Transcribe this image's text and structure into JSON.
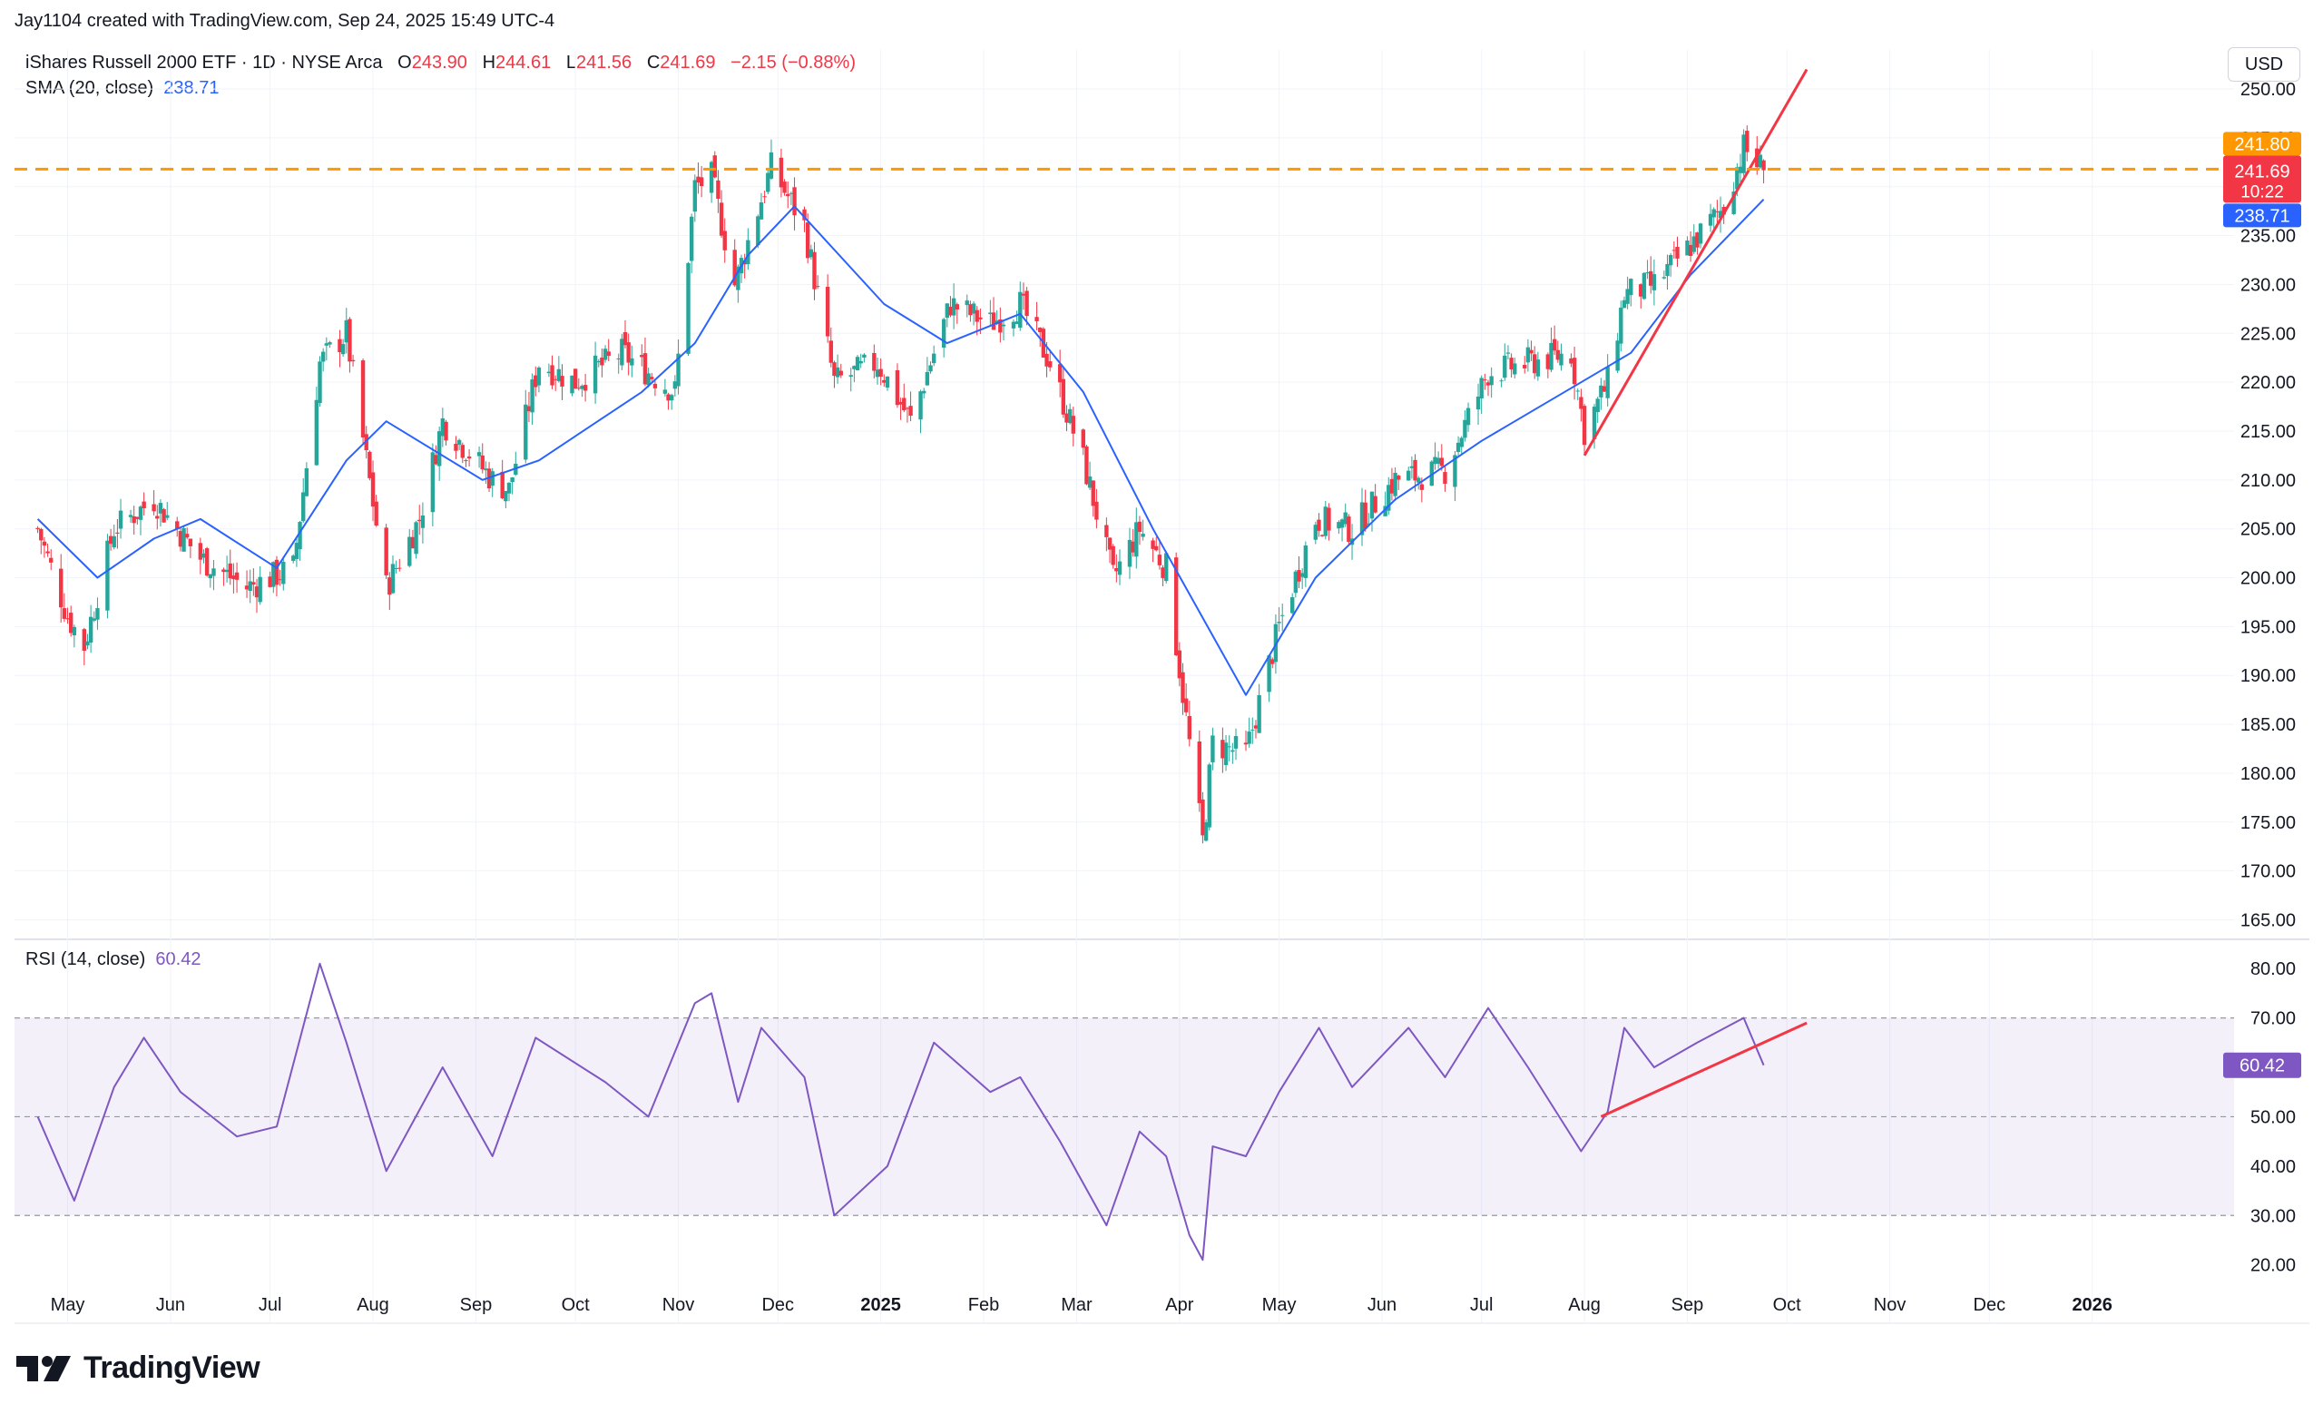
{
  "header": {
    "credit": "Jay1104 created with TradingView.com, Sep 24, 2025 15:49 UTC-4",
    "symbol": "iShares Russell 2000 ETF · 1D · NYSE Arca",
    "o_label": "O",
    "o_value": "243.90",
    "h_label": "H",
    "h_value": "244.61",
    "l_label": "L",
    "l_value": "241.56",
    "c_label": "C",
    "c_value": "241.69",
    "change": "−2.15 (−0.88%)",
    "sma_label": "SMA (20, close)",
    "sma_value": "238.71",
    "currency": "USD"
  },
  "rsi_legend": {
    "label": "RSI (14, close)",
    "value": "60.42"
  },
  "badges": {
    "level": "241.80",
    "price": "241.69",
    "countdown": "10:22",
    "sma": "238.71",
    "rsi": "60.42"
  },
  "brand": {
    "name": "TradingView"
  },
  "colors": {
    "up": "#26a69a",
    "down": "#f23645",
    "sma": "#2962ff",
    "rsi": "#7e57c2",
    "level": "#ff9800",
    "trend": "#f23645",
    "rsi_band": "#7e57c2"
  },
  "chart_data": [
    {
      "type": "candlestick",
      "price_ticks": [
        165,
        170,
        175,
        180,
        185,
        190,
        195,
        200,
        205,
        210,
        215,
        220,
        225,
        230,
        235,
        240,
        245,
        250
      ],
      "ylim": [
        163,
        254
      ],
      "months": [
        "May",
        "Jun",
        "Jul",
        "Aug",
        "Sep",
        "Oct",
        "Nov",
        "Dec",
        "2025",
        "Feb",
        "Mar",
        "Apr",
        "May",
        "Jun",
        "Jul",
        "Aug",
        "Sep",
        "Oct",
        "Nov",
        "Dec",
        "2026"
      ],
      "horizontal_level": 241.8,
      "last_price": 241.69,
      "close_path": [
        [
          "2024-04-22",
          205
        ],
        [
          "2024-05-01",
          196
        ],
        [
          "2024-05-06",
          193
        ],
        [
          "2024-05-15",
          205
        ],
        [
          "2024-05-27",
          208
        ],
        [
          "2024-06-10",
          202
        ],
        [
          "2024-06-24",
          199
        ],
        [
          "2024-07-08",
          201
        ],
        [
          "2024-07-16",
          222
        ],
        [
          "2024-07-24",
          225
        ],
        [
          "2024-08-05",
          199
        ],
        [
          "2024-08-15",
          206
        ],
        [
          "2024-08-22",
          216
        ],
        [
          "2024-09-06",
          210
        ],
        [
          "2024-09-11",
          209
        ],
        [
          "2024-09-20",
          222
        ],
        [
          "2024-10-01",
          220
        ],
        [
          "2024-10-15",
          223
        ],
        [
          "2024-10-31",
          219
        ],
        [
          "2024-11-06",
          240
        ],
        [
          "2024-11-11",
          241
        ],
        [
          "2024-11-18",
          230
        ],
        [
          "2024-11-29",
          242
        ],
        [
          "2024-12-09",
          236
        ],
        [
          "2024-12-18",
          220
        ],
        [
          "2024-12-31",
          222
        ],
        [
          "2025-01-10",
          216
        ],
        [
          "2025-01-22",
          228
        ],
        [
          "2025-02-03",
          226
        ],
        [
          "2025-02-12",
          228
        ],
        [
          "2025-02-21",
          222
        ],
        [
          "2025-03-03",
          212
        ],
        [
          "2025-03-12",
          200
        ],
        [
          "2025-03-20",
          205
        ],
        [
          "2025-03-28",
          201
        ],
        [
          "2025-04-04",
          183
        ],
        [
          "2025-04-08",
          173
        ],
        [
          "2025-04-11",
          183
        ],
        [
          "2025-04-21",
          182
        ],
        [
          "2025-05-01",
          195
        ],
        [
          "2025-05-12",
          206
        ],
        [
          "2025-05-23",
          205
        ],
        [
          "2025-06-05",
          210
        ],
        [
          "2025-06-20",
          211
        ],
        [
          "2025-07-03",
          221
        ],
        [
          "2025-07-15",
          222
        ],
        [
          "2025-07-28",
          223
        ],
        [
          "2025-08-01",
          215
        ],
        [
          "2025-08-08",
          220
        ],
        [
          "2025-08-13",
          229
        ],
        [
          "2025-08-22",
          230
        ],
        [
          "2025-09-02",
          234
        ],
        [
          "2025-09-12",
          238
        ],
        [
          "2025-09-18",
          244
        ],
        [
          "2025-09-24",
          241.69
        ]
      ],
      "sma_path": [
        [
          "2024-04-22",
          206
        ],
        [
          "2024-05-10",
          200
        ],
        [
          "2024-05-27",
          204
        ],
        [
          "2024-06-10",
          206
        ],
        [
          "2024-07-03",
          201
        ],
        [
          "2024-07-24",
          212
        ],
        [
          "2024-08-05",
          216
        ],
        [
          "2024-09-03",
          210
        ],
        [
          "2024-09-20",
          212
        ],
        [
          "2024-10-21",
          219
        ],
        [
          "2024-11-06",
          224
        ],
        [
          "2024-11-22",
          233
        ],
        [
          "2024-12-06",
          238
        ],
        [
          "2025-01-02",
          228
        ],
        [
          "2025-01-21",
          224
        ],
        [
          "2025-02-12",
          227
        ],
        [
          "2025-03-03",
          219
        ],
        [
          "2025-03-24",
          205
        ],
        [
          "2025-04-21",
          188
        ],
        [
          "2025-05-12",
          200
        ],
        [
          "2025-06-05",
          208
        ],
        [
          "2025-07-01",
          214
        ],
        [
          "2025-07-31",
          220
        ],
        [
          "2025-08-15",
          223
        ],
        [
          "2025-09-02",
          231
        ],
        [
          "2025-09-24",
          238.71
        ]
      ],
      "trendline": [
        [
          "2025-08-01",
          212.5
        ],
        [
          "2025-10-07",
          252
        ]
      ]
    },
    {
      "type": "line",
      "rsi_ticks": [
        20,
        30,
        40,
        50,
        60,
        70,
        80
      ],
      "ylim": [
        17,
        85
      ],
      "band": [
        30,
        70
      ],
      "midline": 50,
      "rsi_path": [
        [
          "2024-04-22",
          50
        ],
        [
          "2024-05-03",
          33
        ],
        [
          "2024-05-15",
          56
        ],
        [
          "2024-05-24",
          66
        ],
        [
          "2024-06-04",
          55
        ],
        [
          "2024-06-21",
          46
        ],
        [
          "2024-07-03",
          48
        ],
        [
          "2024-07-16",
          81
        ],
        [
          "2024-07-24",
          65
        ],
        [
          "2024-08-05",
          39
        ],
        [
          "2024-08-22",
          60
        ],
        [
          "2024-09-06",
          42
        ],
        [
          "2024-09-19",
          66
        ],
        [
          "2024-10-10",
          57
        ],
        [
          "2024-10-23",
          50
        ],
        [
          "2024-11-06",
          73
        ],
        [
          "2024-11-11",
          75
        ],
        [
          "2024-11-19",
          53
        ],
        [
          "2024-11-26",
          68
        ],
        [
          "2024-12-09",
          58
        ],
        [
          "2024-12-18",
          30
        ],
        [
          "2025-01-03",
          40
        ],
        [
          "2025-01-17",
          65
        ],
        [
          "2025-02-03",
          55
        ],
        [
          "2025-02-12",
          58
        ],
        [
          "2025-02-24",
          45
        ],
        [
          "2025-03-10",
          28
        ],
        [
          "2025-03-20",
          47
        ],
        [
          "2025-03-28",
          42
        ],
        [
          "2025-04-04",
          26
        ],
        [
          "2025-04-08",
          21
        ],
        [
          "2025-04-11",
          44
        ],
        [
          "2025-04-21",
          42
        ],
        [
          "2025-05-01",
          55
        ],
        [
          "2025-05-13",
          68
        ],
        [
          "2025-05-23",
          56
        ],
        [
          "2025-06-09",
          68
        ],
        [
          "2025-06-20",
          58
        ],
        [
          "2025-07-03",
          72
        ],
        [
          "2025-07-15",
          60
        ],
        [
          "2025-07-31",
          43
        ],
        [
          "2025-08-08",
          51
        ],
        [
          "2025-08-13",
          68
        ],
        [
          "2025-08-22",
          60
        ],
        [
          "2025-09-04",
          65
        ],
        [
          "2025-09-18",
          70
        ],
        [
          "2025-09-24",
          60.42
        ]
      ],
      "trendline": [
        [
          "2025-08-06",
          50
        ],
        [
          "2025-10-07",
          69
        ]
      ]
    }
  ]
}
